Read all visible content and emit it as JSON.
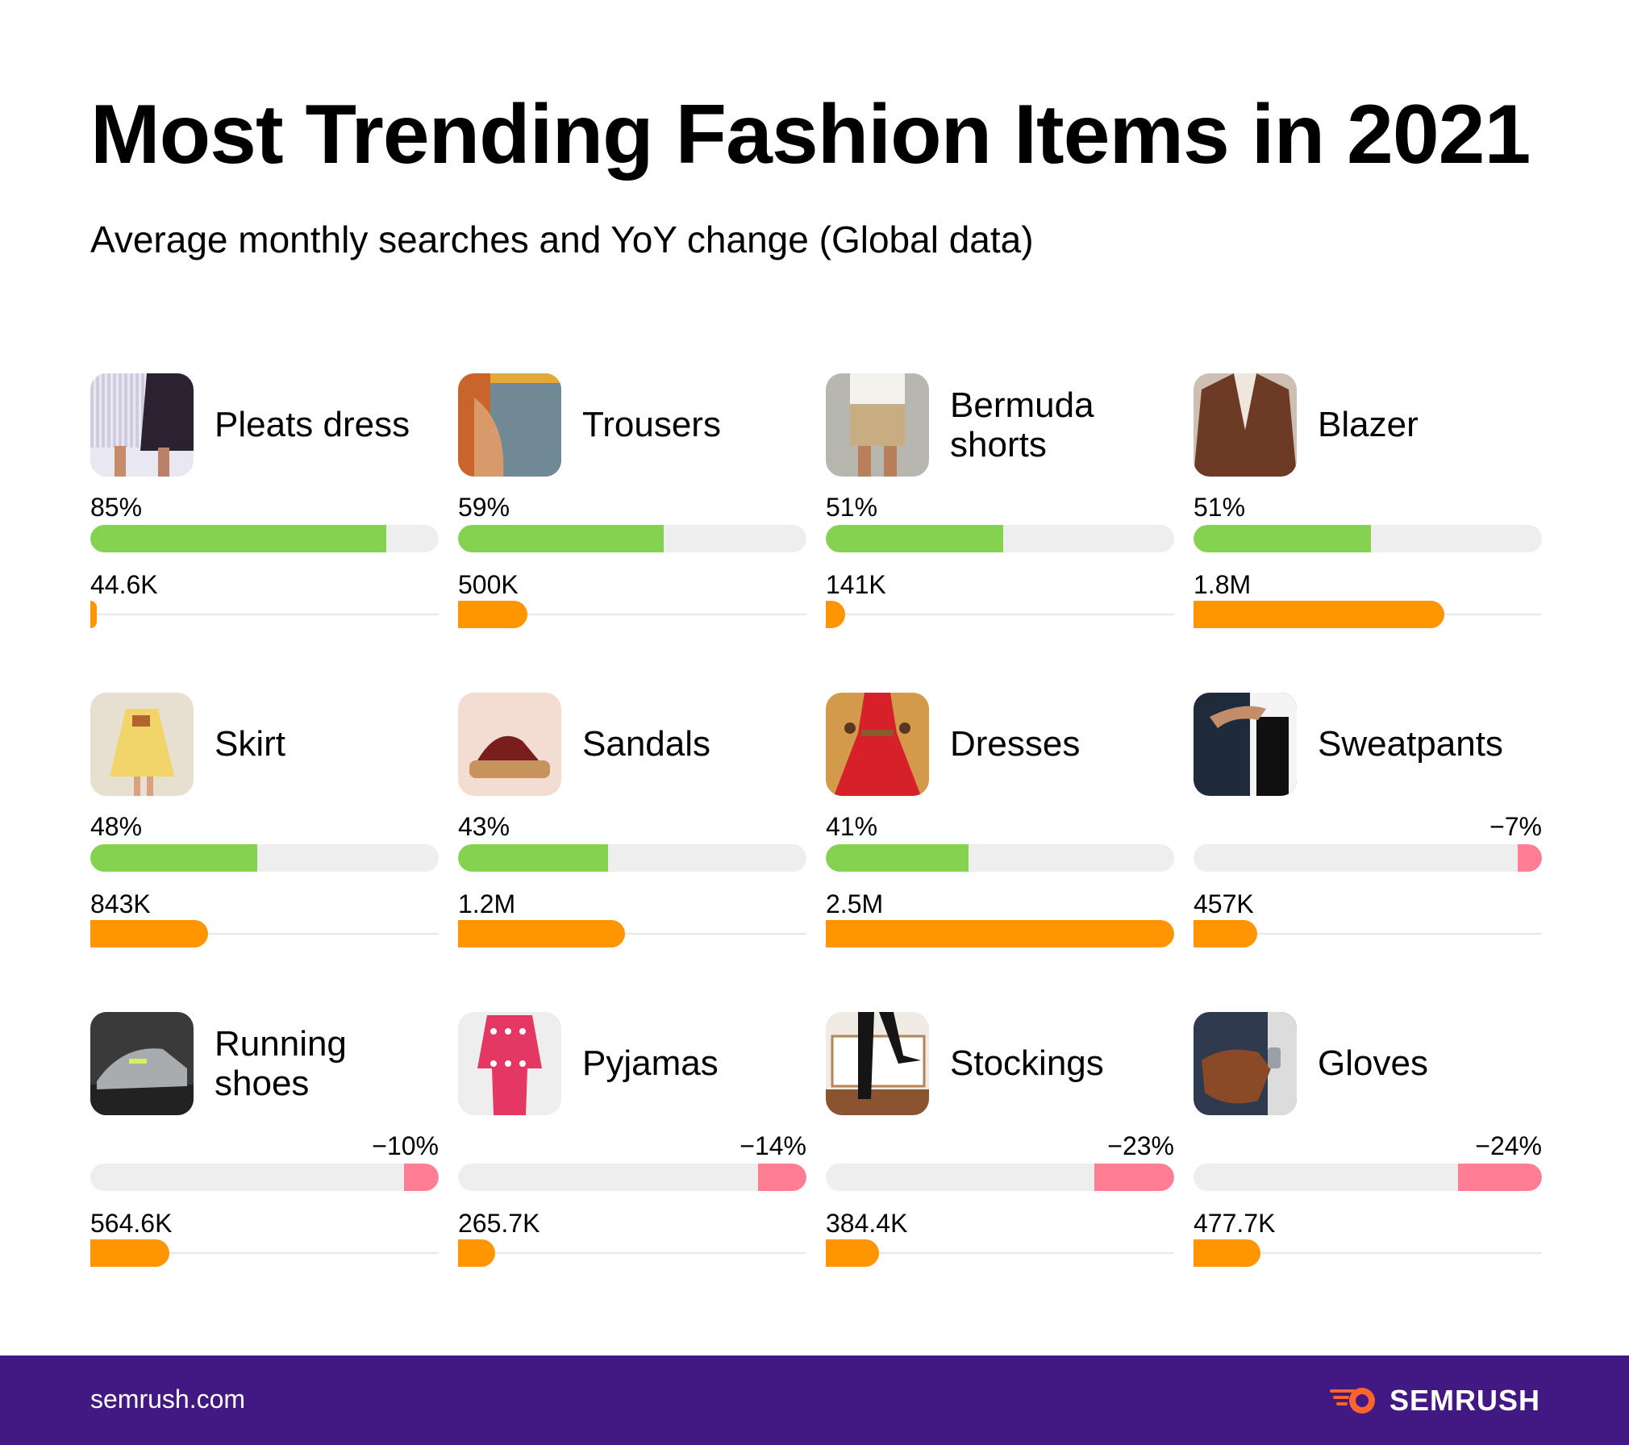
{
  "title": "Most Trending Fashion Items in 2021",
  "subtitle": "Average monthly searches and YoY change (Global data)",
  "footer": {
    "source": "semrush.com",
    "brand": "SEMRUSH"
  },
  "colors": {
    "positive": "#84d250",
    "negative": "#ff7e93",
    "volume": "#ff9500",
    "track": "#eeeeee",
    "footer_bg": "#421983",
    "brand_accent": "#ff642d"
  },
  "chart_data": {
    "type": "bar",
    "title": "Most Trending Fashion Items in 2021",
    "subtitle": "Average monthly searches and YoY change (Global data)",
    "ylim_yoy": [
      -100,
      100
    ],
    "ylim_searches": [
      0,
      2500000
    ],
    "items": [
      {
        "name": "Pleats dress",
        "yoy": 85,
        "yoy_label": "85%",
        "searches": 44600,
        "searches_label": "44.6K",
        "icon": "pleats-dress-photo"
      },
      {
        "name": "Trousers",
        "yoy": 59,
        "yoy_label": "59%",
        "searches": 500000,
        "searches_label": "500K",
        "icon": "trousers-photo"
      },
      {
        "name": "Bermuda shorts",
        "yoy": 51,
        "yoy_label": "51%",
        "searches": 141000,
        "searches_label": "141K",
        "icon": "bermuda-shorts-photo"
      },
      {
        "name": "Blazer",
        "yoy": 51,
        "yoy_label": "51%",
        "searches": 1800000,
        "searches_label": "1.8M",
        "icon": "blazer-photo"
      },
      {
        "name": "Skirt",
        "yoy": 48,
        "yoy_label": "48%",
        "searches": 843000,
        "searches_label": "843K",
        "icon": "skirt-photo"
      },
      {
        "name": "Sandals",
        "yoy": 43,
        "yoy_label": "43%",
        "searches": 1200000,
        "searches_label": "1.2M",
        "icon": "sandals-photo"
      },
      {
        "name": "Dresses",
        "yoy": 41,
        "yoy_label": "41%",
        "searches": 2500000,
        "searches_label": "2.5M",
        "icon": "dresses-photo"
      },
      {
        "name": "Sweatpants",
        "yoy": -7,
        "yoy_label": "−7%",
        "searches": 457000,
        "searches_label": "457K",
        "icon": "sweatpants-photo"
      },
      {
        "name": "Running shoes",
        "yoy": -10,
        "yoy_label": "−10%",
        "searches": 564600,
        "searches_label": "564.6K",
        "icon": "running-shoes-photo"
      },
      {
        "name": "Pyjamas",
        "yoy": -14,
        "yoy_label": "−14%",
        "searches": 265700,
        "searches_label": "265.7K",
        "icon": "pyjamas-photo"
      },
      {
        "name": "Stockings",
        "yoy": -23,
        "yoy_label": "−23%",
        "searches": 384400,
        "searches_label": "384.4K",
        "icon": "stockings-photo"
      },
      {
        "name": "Gloves",
        "yoy": -24,
        "yoy_label": "−24%",
        "searches": 477700,
        "searches_label": "477.7K",
        "icon": "gloves-photo"
      }
    ]
  }
}
